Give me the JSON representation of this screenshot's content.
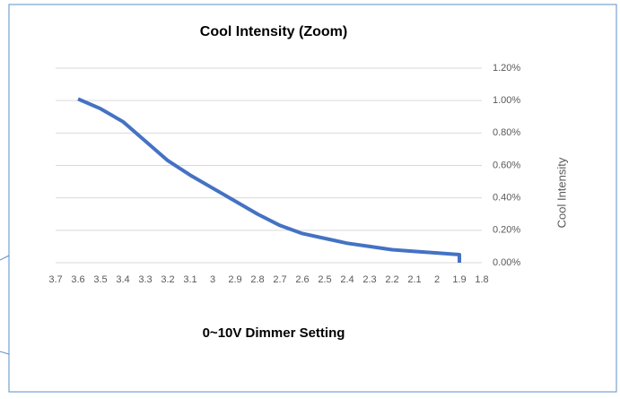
{
  "chart_data": {
    "type": "line",
    "title": "Cool Intensity (Zoom)",
    "x_label": "0~10V Dimmer Setting",
    "y_label": "Cool Intensity",
    "x": [
      3.6,
      3.5,
      3.4,
      3.3,
      3.2,
      3.1,
      3.0,
      2.9,
      2.8,
      2.7,
      2.6,
      2.5,
      2.4,
      2.3,
      2.2,
      2.1,
      2.0,
      1.9,
      1.9
    ],
    "values": [
      1.01,
      0.95,
      0.87,
      0.75,
      0.63,
      0.54,
      0.46,
      0.38,
      0.3,
      0.23,
      0.18,
      0.15,
      0.12,
      0.1,
      0.08,
      0.07,
      0.06,
      0.05,
      0
    ],
    "color": "#4472c4",
    "xlim": [
      3.7,
      1.8
    ],
    "xticks": [
      3.7,
      3.6,
      3.5,
      3.4,
      3.3,
      3.2,
      3.1,
      3,
      2.9,
      2.8,
      2.7,
      2.6,
      2.5,
      2.4,
      2.3,
      2.2,
      2.1,
      2,
      1.9,
      1.8
    ],
    "ylim": [
      0,
      1.2
    ],
    "yticks": [
      {
        "value": 0,
        "label": "0.00%"
      },
      {
        "value": 0.2,
        "label": "0.20%"
      },
      {
        "value": 0.4,
        "label": "0.40%"
      },
      {
        "value": 0.6,
        "label": "0.60%"
      },
      {
        "value": 0.8,
        "label": "0.80%"
      },
      {
        "value": 1.0,
        "label": "1.00%"
      },
      {
        "value": 1.2,
        "label": "1.20%"
      }
    ],
    "grid": true
  }
}
